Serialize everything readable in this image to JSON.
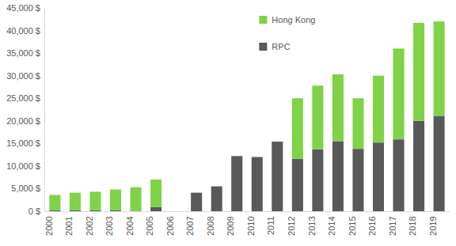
{
  "chart_data": {
    "type": "bar",
    "stacked": true,
    "legend": "top-right",
    "categories": [
      "2000",
      "2001",
      "2002",
      "2003",
      "2004",
      "2005",
      "2006",
      "2007",
      "2008",
      "2009",
      "2010",
      "2011",
      "2012",
      "2013",
      "2014",
      "2015",
      "2016",
      "2017",
      "2018",
      "2019"
    ],
    "series": [
      {
        "name": "RPC",
        "color": "#595959",
        "values": [
          200,
          200,
          200,
          200,
          100,
          900,
          0,
          4100,
          5500,
          12200,
          12000,
          15400,
          11600,
          13700,
          15500,
          13800,
          15200,
          15900,
          20000,
          21100
        ]
      },
      {
        "name": "Hong Kong",
        "color": "#7ed348",
        "values": [
          3400,
          3900,
          4100,
          4600,
          5200,
          6100,
          0,
          0,
          0,
          0,
          0,
          0,
          13400,
          14100,
          14800,
          11200,
          14800,
          20100,
          21700,
          20900
        ]
      }
    ],
    "ylim": [
      0,
      45000
    ],
    "yticks": [
      {
        "value": 0,
        "label": "0 $"
      },
      {
        "value": 5000,
        "label": "5,000 $"
      },
      {
        "value": 10000,
        "label": "10,000 $"
      },
      {
        "value": 15000,
        "label": "15,000 $"
      },
      {
        "value": 20000,
        "label": "20,000 $"
      },
      {
        "value": 25000,
        "label": "25,000 $"
      },
      {
        "value": 30000,
        "label": "30,000 $"
      },
      {
        "value": 35000,
        "label": "35,000 $"
      },
      {
        "value": 40000,
        "label": "40,000 $"
      },
      {
        "value": 45000,
        "label": "45,000 $"
      }
    ],
    "grid": false
  }
}
